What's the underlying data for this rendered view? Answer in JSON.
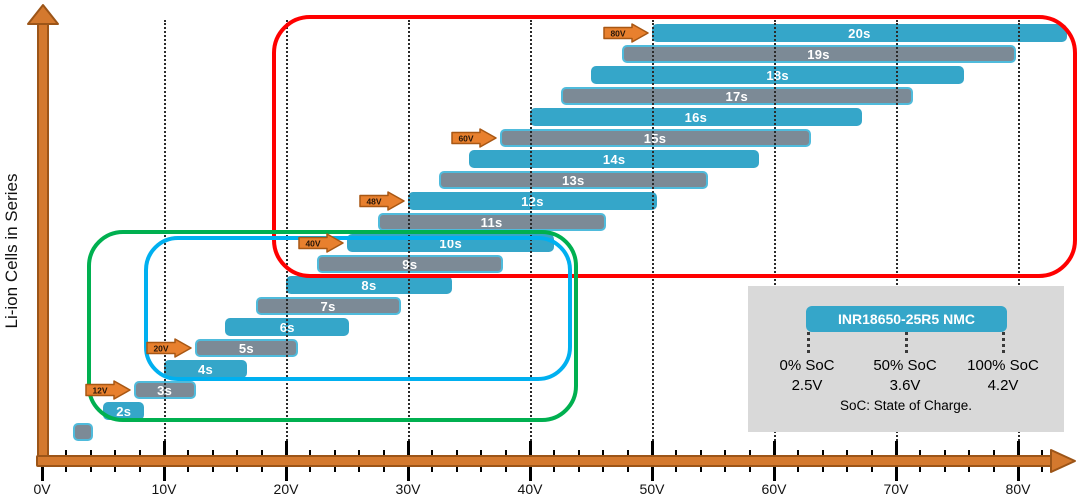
{
  "colors": {
    "bar_blue": "#35A6C9",
    "bar_gray": "#7C8A96",
    "bar_gray_border": "#4FBBDC",
    "bar_label_text": "#FFFFFF",
    "arrow_fill": "#E8802E",
    "arrow_border": "#A85713",
    "arrow_text": "#26160A",
    "axis_fill": "#D4792E",
    "axis_border": "#9C5518",
    "group_red": "#FF0000",
    "group_green": "#00B050",
    "group_blue": "#00B0F0",
    "legend_bg": "#D9D9D9",
    "gridline": "#2B2B2B"
  },
  "x_axis": {
    "tick_labels": [
      "0V",
      "10V",
      "20V",
      "30V",
      "40V",
      "50V",
      "60V",
      "70V",
      "80V"
    ],
    "minor_tick_step_V": 2
  },
  "chart_data": {
    "type": "bar",
    "subtype": "horizontal-range-bars",
    "title": "",
    "xlabel": "",
    "ylabel": "Li-ion Cells in Series",
    "xlim": [
      0,
      84.5
    ],
    "grid": "dotted-vertical",
    "gridlines_V": [
      10,
      20,
      30,
      40,
      50,
      60,
      70,
      80
    ],
    "cell_voltage": {
      "soc_0_V": 2.5,
      "soc_50_V": 3.6,
      "soc_100_V": 4.2
    },
    "bars": [
      {
        "label": "",
        "cells": 1,
        "v_min": 2.5,
        "v_max": 4.2,
        "color": "gray"
      },
      {
        "label": "2s",
        "cells": 2,
        "v_min": 5.0,
        "v_max": 8.4,
        "color": "blue"
      },
      {
        "label": "3s",
        "cells": 3,
        "v_min": 7.5,
        "v_max": 12.6,
        "color": "gray"
      },
      {
        "label": "4s",
        "cells": 4,
        "v_min": 10.0,
        "v_max": 16.8,
        "color": "blue"
      },
      {
        "label": "5s",
        "cells": 5,
        "v_min": 12.5,
        "v_max": 21.0,
        "color": "gray"
      },
      {
        "label": "6s",
        "cells": 6,
        "v_min": 15.0,
        "v_max": 25.2,
        "color": "blue"
      },
      {
        "label": "7s",
        "cells": 7,
        "v_min": 17.5,
        "v_max": 29.4,
        "color": "gray"
      },
      {
        "label": "8s",
        "cells": 8,
        "v_min": 20.0,
        "v_max": 33.6,
        "color": "blue"
      },
      {
        "label": "9s",
        "cells": 9,
        "v_min": 22.5,
        "v_max": 37.8,
        "color": "gray"
      },
      {
        "label": "10s",
        "cells": 10,
        "v_min": 25.0,
        "v_max": 42.0,
        "color": "blue"
      },
      {
        "label": "11s",
        "cells": 11,
        "v_min": 27.5,
        "v_max": 46.2,
        "color": "gray"
      },
      {
        "label": "12s",
        "cells": 12,
        "v_min": 30.0,
        "v_max": 50.4,
        "color": "blue"
      },
      {
        "label": "13s",
        "cells": 13,
        "v_min": 32.5,
        "v_max": 54.6,
        "color": "gray"
      },
      {
        "label": "14s",
        "cells": 14,
        "v_min": 35.0,
        "v_max": 58.8,
        "color": "blue"
      },
      {
        "label": "15s",
        "cells": 15,
        "v_min": 37.5,
        "v_max": 63.0,
        "color": "gray"
      },
      {
        "label": "16s",
        "cells": 16,
        "v_min": 40.0,
        "v_max": 67.2,
        "color": "blue"
      },
      {
        "label": "17s",
        "cells": 17,
        "v_min": 42.5,
        "v_max": 71.4,
        "color": "gray"
      },
      {
        "label": "18s",
        "cells": 18,
        "v_min": 45.0,
        "v_max": 75.6,
        "color": "blue"
      },
      {
        "label": "19s",
        "cells": 19,
        "v_min": 47.5,
        "v_max": 79.8,
        "color": "gray"
      },
      {
        "label": "20s",
        "cells": 20,
        "v_min": 50.0,
        "v_max": 84.0,
        "color": "blue"
      }
    ],
    "arrows": [
      {
        "label": "12V",
        "cells": 3
      },
      {
        "label": "20V",
        "cells": 5
      },
      {
        "label": "40V",
        "cells": 10
      },
      {
        "label": "48V",
        "cells": 12
      },
      {
        "label": "60V",
        "cells": 15
      },
      {
        "label": "80V",
        "cells": 20
      }
    ],
    "groups": [
      {
        "id": "red",
        "cells_range": "9s-20s"
      },
      {
        "id": "green",
        "cells_range": "2s-10s"
      },
      {
        "id": "blue",
        "cells_range": "4s-10s"
      }
    ]
  },
  "legend": {
    "title": "INR18650-25R5 NMC",
    "entries": [
      {
        "label": "0% SoC",
        "value": "2.5V"
      },
      {
        "label": "50% SoC",
        "value": "3.6V"
      },
      {
        "label": "100% SoC",
        "value": "4.2V"
      }
    ],
    "footnote": "SoC: State of Charge."
  }
}
